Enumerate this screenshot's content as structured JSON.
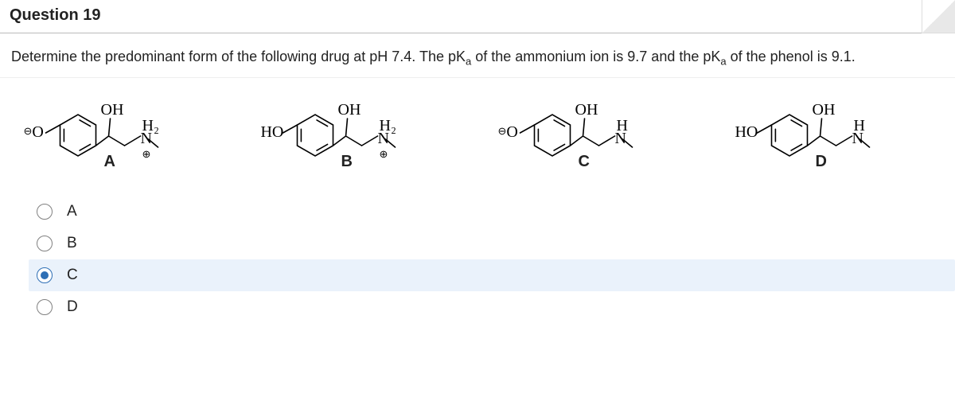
{
  "question_number": "Question 19",
  "prompt_html": "Determine the predominant form of the following drug at pH 7.4.  The pK<sub>a</sub> of the ammonium ion is 9.7 and the pK<sub>a</sub> of the phenol is 9.1.",
  "ring_stroke": "#000000",
  "bond_width": 1.6,
  "label_font": "Times New Roman, serif",
  "molecules": [
    {
      "tag": "A",
      "phenol": "anion",
      "oh_present": true,
      "amine_label": "H2N+",
      "para_left": "⊖O",
      "para_right_top": "OH",
      "amine_top": "H₂",
      "amine_mid": "N",
      "amine_charge": "⊕"
    },
    {
      "tag": "B",
      "phenol": "neutral",
      "oh_present": true,
      "amine_label": "H2N+",
      "para_left": "HO",
      "para_right_top": "OH",
      "amine_top": "H₂",
      "amine_mid": "N",
      "amine_charge": "⊕"
    },
    {
      "tag": "C",
      "phenol": "anion",
      "oh_present": true,
      "amine_label": "HN",
      "para_left": "⊖O",
      "para_right_top": "OH",
      "amine_top": "H",
      "amine_mid": "N",
      "amine_charge": ""
    },
    {
      "tag": "D",
      "phenol": "neutral",
      "oh_present": true,
      "amine_label": "HN",
      "para_left": "HO",
      "para_right_top": "OH",
      "amine_top": "H",
      "amine_mid": "N",
      "amine_charge": ""
    }
  ],
  "options": [
    {
      "label": "A",
      "selected": false
    },
    {
      "label": "B",
      "selected": false
    },
    {
      "label": "C",
      "selected": true
    },
    {
      "label": "D",
      "selected": false
    }
  ]
}
